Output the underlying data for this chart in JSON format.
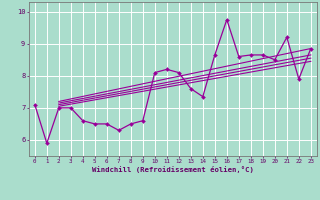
{
  "xlabel": "Windchill (Refroidissement éolien,°C)",
  "bg_color": "#aaddcc",
  "line_color": "#990099",
  "grid_color": "#ffffff",
  "x_data": [
    0,
    1,
    2,
    3,
    4,
    5,
    6,
    7,
    8,
    9,
    10,
    11,
    12,
    13,
    14,
    15,
    16,
    17,
    18,
    19,
    20,
    21,
    22,
    23
  ],
  "y_data": [
    7.1,
    5.9,
    7.0,
    7.0,
    6.6,
    6.5,
    6.5,
    6.3,
    6.5,
    6.6,
    8.1,
    8.2,
    8.1,
    7.6,
    7.35,
    8.65,
    9.75,
    8.6,
    8.65,
    8.65,
    8.5,
    9.2,
    7.9,
    8.85
  ],
  "reg_lines": [
    [
      [
        2,
        7.1
      ],
      [
        23,
        8.55
      ]
    ],
    [
      [
        2,
        7.2
      ],
      [
        23,
        8.85
      ]
    ],
    [
      [
        2,
        7.05
      ],
      [
        23,
        8.45
      ]
    ],
    [
      [
        2,
        7.15
      ],
      [
        23,
        8.65
      ]
    ]
  ],
  "xlim": [
    -0.5,
    23.5
  ],
  "ylim": [
    5.5,
    10.3
  ],
  "yticks": [
    6,
    7,
    8,
    9,
    10
  ],
  "xticks": [
    0,
    1,
    2,
    3,
    4,
    5,
    6,
    7,
    8,
    9,
    10,
    11,
    12,
    13,
    14,
    15,
    16,
    17,
    18,
    19,
    20,
    21,
    22,
    23
  ]
}
